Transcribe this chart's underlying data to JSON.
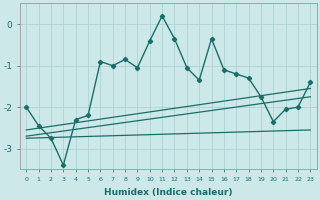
{
  "xlabel": "Humidex (Indice chaleur)",
  "background_color": "#cce8e8",
  "line_color": "#1a6e6a",
  "xlim": [
    -0.5,
    23.5
  ],
  "ylim": [
    -3.5,
    0.5
  ],
  "yticks": [
    0,
    -1,
    -2,
    -3
  ],
  "xticks": [
    0,
    1,
    2,
    3,
    4,
    5,
    6,
    7,
    8,
    9,
    10,
    11,
    12,
    13,
    14,
    15,
    16,
    17,
    18,
    19,
    20,
    21,
    22,
    23
  ],
  "main_x": [
    0,
    1,
    2,
    3,
    4,
    5,
    6,
    7,
    8,
    9,
    10,
    11,
    12,
    13,
    14,
    15,
    16,
    17,
    18,
    19,
    20,
    21,
    22,
    23
  ],
  "main_y": [
    -2.0,
    -2.45,
    -2.75,
    -3.4,
    -2.3,
    -2.2,
    -0.9,
    -1.0,
    -0.85,
    -1.05,
    -0.4,
    0.2,
    -0.35,
    -1.05,
    -1.35,
    -0.35,
    -1.1,
    -1.2,
    -1.3,
    -1.75,
    -2.35,
    -2.05,
    -2.0,
    -1.4
  ],
  "line2_x": [
    0,
    23
  ],
  "line2_y": [
    -2.55,
    -1.55
  ],
  "line3_x": [
    0,
    23
  ],
  "line3_y": [
    -2.7,
    -1.75
  ],
  "line4_x": [
    0,
    23
  ],
  "line4_y": [
    -2.75,
    -2.55
  ]
}
